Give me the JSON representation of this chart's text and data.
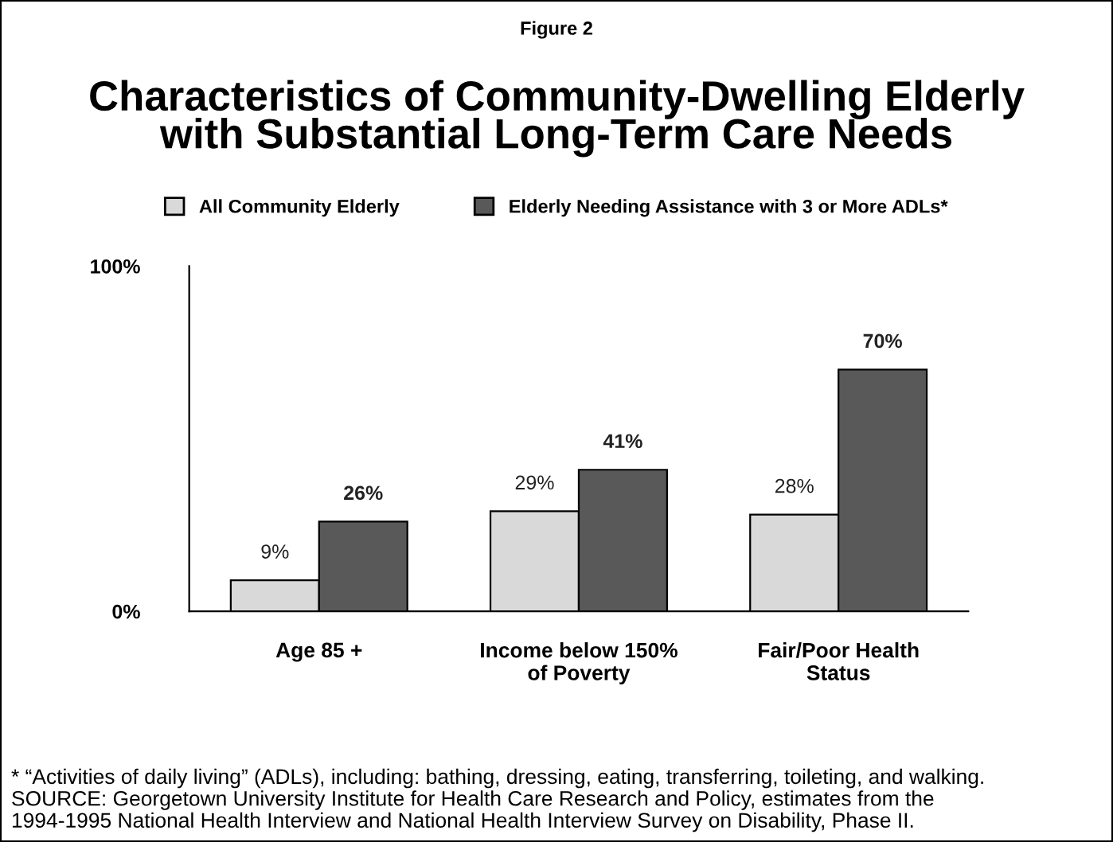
{
  "chart_data": {
    "type": "bar",
    "title": "Characteristics of Community-Dwelling Elderly\nwith Substantial Long-Term Care Needs",
    "categories": [
      "Age 85 +",
      "Income below 150%\nof Poverty",
      "Fair/Poor Health\nStatus"
    ],
    "series": [
      {
        "name": "All Community Elderly",
        "color": "#d9d9d9",
        "values": [
          9,
          29,
          28
        ],
        "value_labels": [
          "9%",
          "29%",
          "28%"
        ]
      },
      {
        "name": "Elderly Needing Assistance with 3 or More ADLs*",
        "color": "#595959",
        "values": [
          26,
          41,
          70
        ],
        "value_labels": [
          "26%",
          "41%",
          "70%"
        ]
      }
    ],
    "ylim": [
      0,
      100
    ],
    "yticks": [
      {
        "value": 0,
        "label": "0%"
      },
      {
        "value": 100,
        "label": "100%"
      }
    ],
    "grid": false,
    "legend": "top",
    "annotations": [
      "Figure 2",
      "* “Activities of daily living” (ADLs), including: bathing, dressing, eating, transferring, toileting, and walking.\nSOURCE: Georgetown University Institute for Health Care Research and Policy, estimates from the\n1994-1995 National Health Interview and National Health Interview Survey on Disability, Phase II."
    ]
  }
}
